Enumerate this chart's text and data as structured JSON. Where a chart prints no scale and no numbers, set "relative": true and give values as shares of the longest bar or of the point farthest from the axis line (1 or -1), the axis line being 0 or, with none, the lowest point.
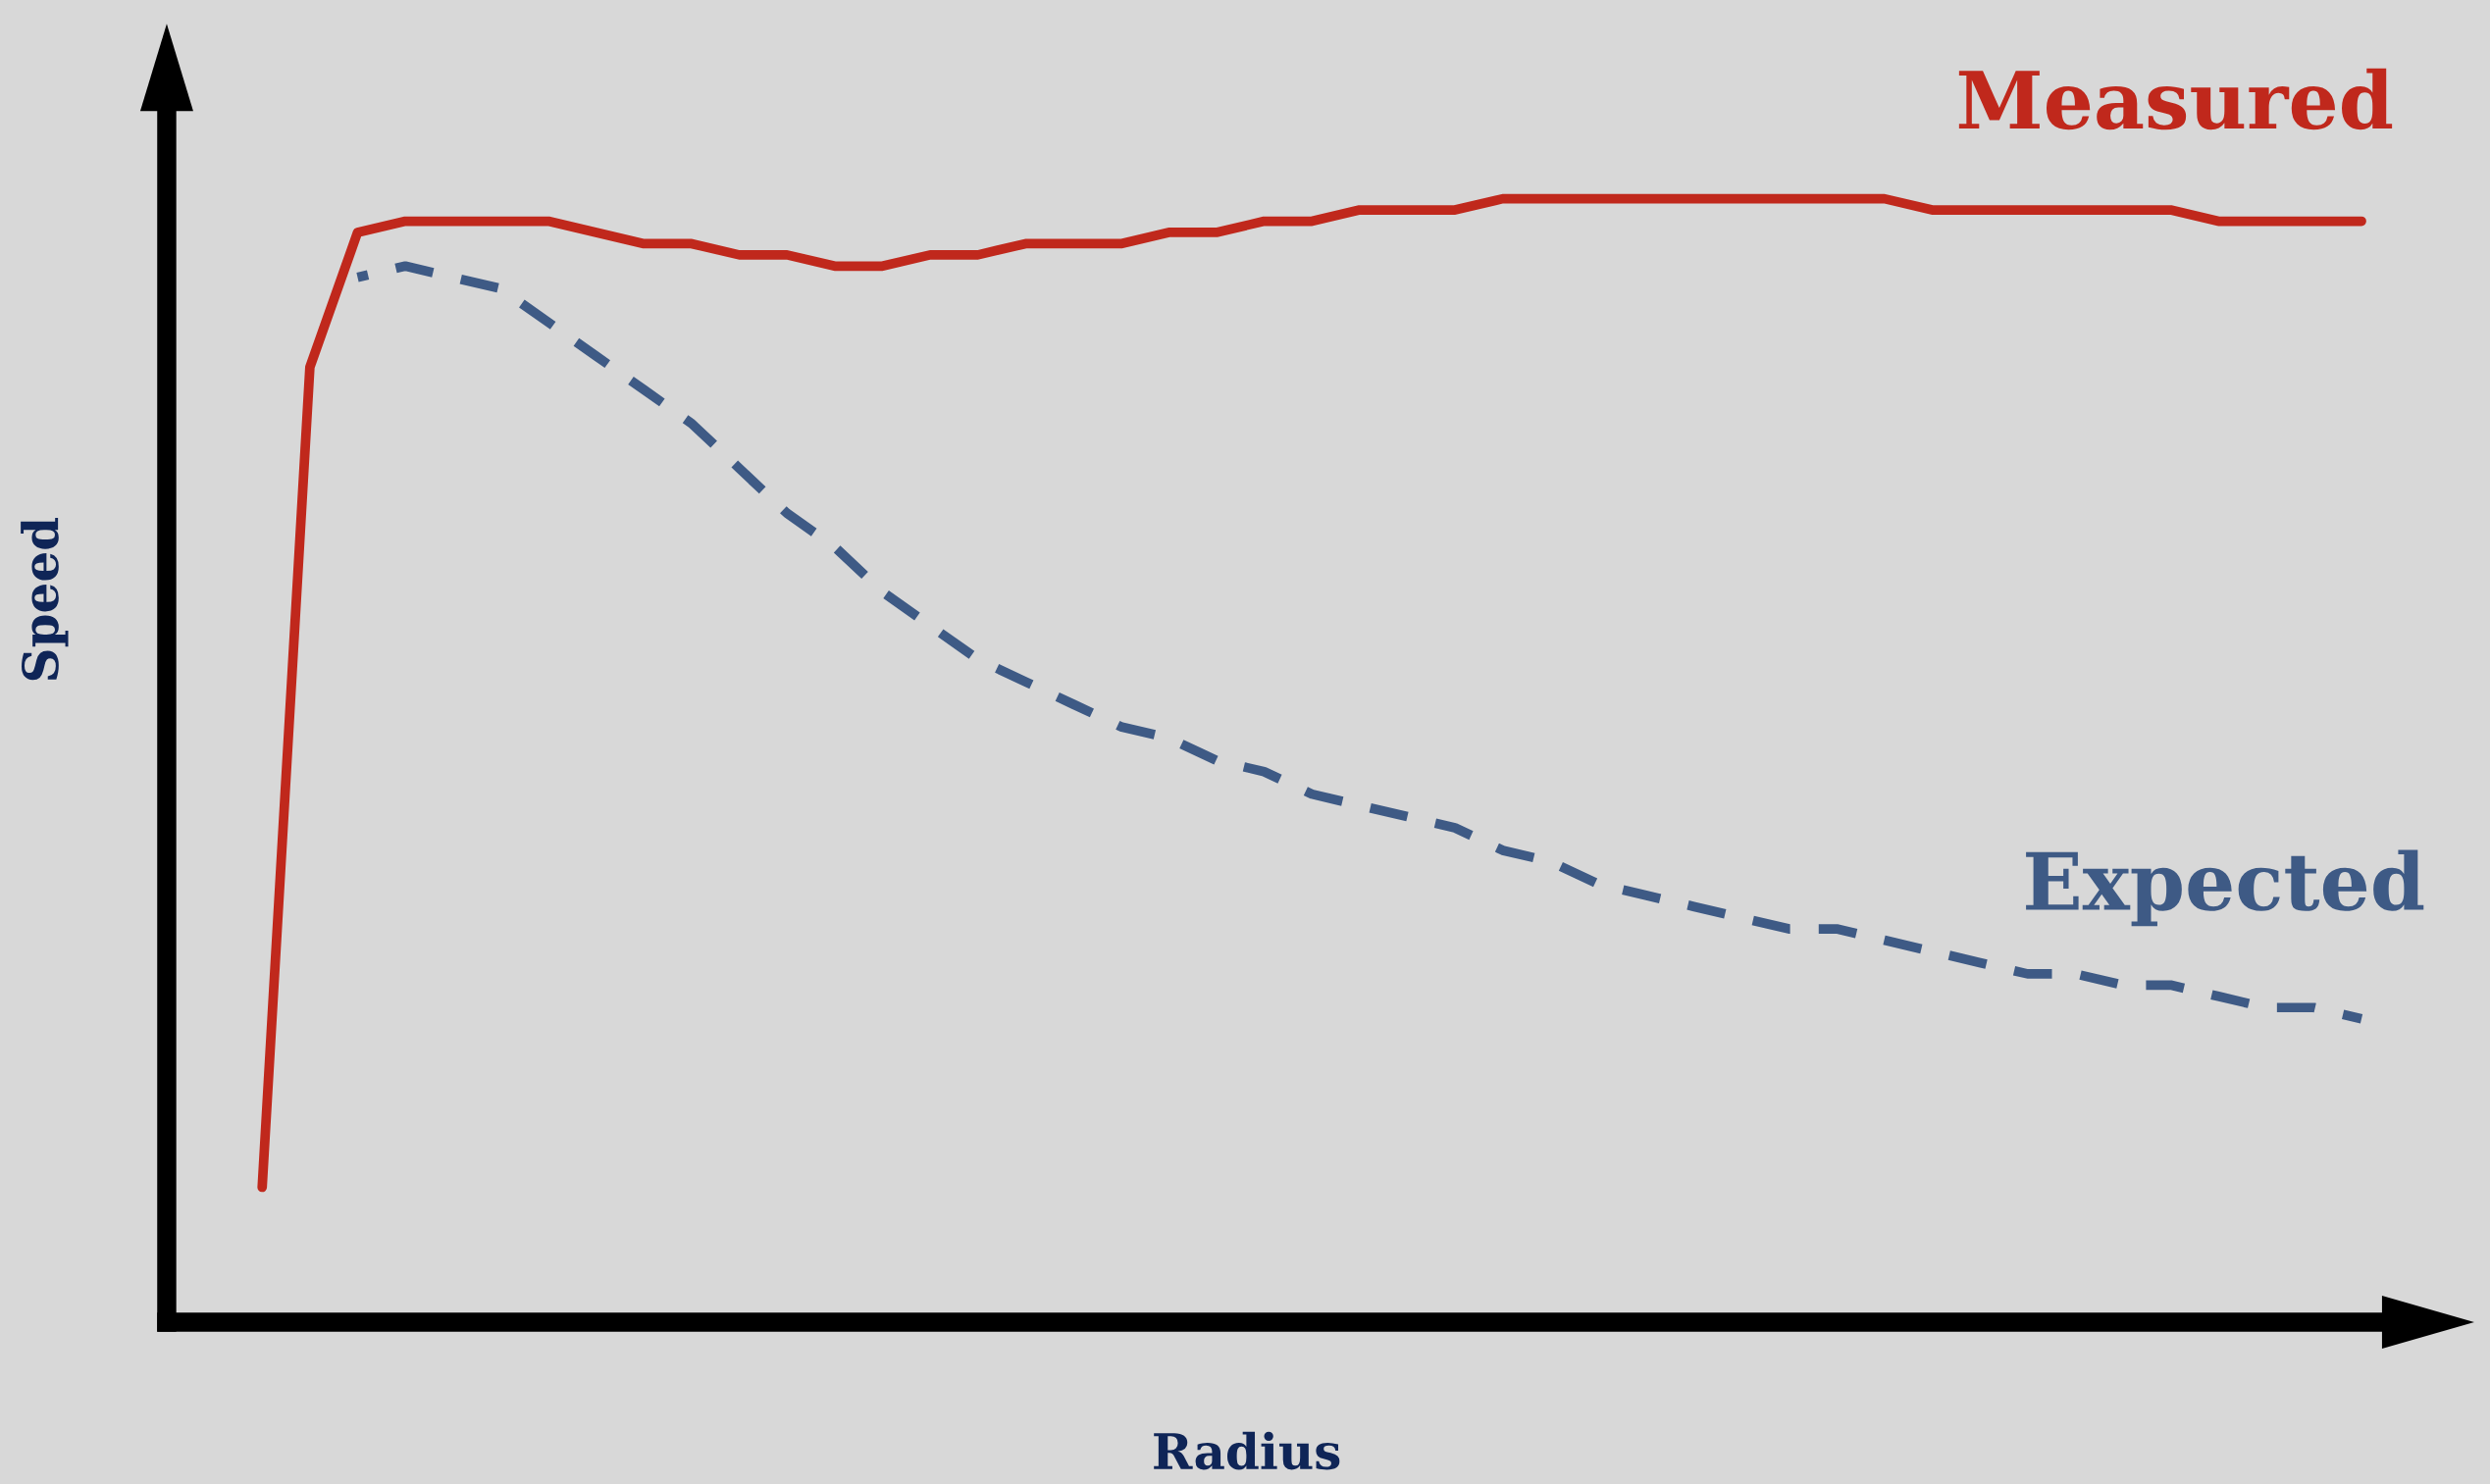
{
  "chart_data": {
    "type": "line",
    "relative": true,
    "xlabel": "Radius",
    "ylabel": "Speed",
    "categories": [
      null,
      null,
      null,
      null,
      null,
      null,
      null,
      null,
      null,
      null,
      null,
      null,
      null,
      null,
      null,
      null,
      null,
      null,
      null,
      null,
      null,
      null,
      null,
      null,
      null,
      null,
      null,
      null,
      null,
      null,
      null,
      null,
      null,
      null,
      null,
      null,
      null,
      null,
      null,
      null,
      null,
      null,
      null,
      null,
      null
    ],
    "series": [
      {
        "name": "Measured",
        "color": "#c0281c",
        "line_style": "solid",
        "values": [
          0.12,
          0.85,
          0.97,
          0.98,
          0.98,
          0.98,
          0.98,
          0.97,
          0.96,
          0.96,
          0.95,
          0.95,
          0.94,
          0.94,
          0.95,
          0.95,
          0.96,
          0.96,
          0.96,
          0.97,
          0.97,
          0.98,
          0.98,
          0.99,
          0.99,
          0.99,
          1.0,
          1.0,
          1.0,
          1.0,
          1.0,
          1.0,
          1.0,
          1.0,
          1.0,
          0.99,
          0.99,
          0.99,
          0.99,
          0.99,
          0.99,
          0.98,
          0.98,
          0.98,
          0.98
        ]
      },
      {
        "name": "Expected",
        "color": "#3e5a85",
        "line_style": "dashed",
        "values": [
          null,
          null,
          0.93,
          0.94,
          0.93,
          0.92,
          0.89,
          0.86,
          0.83,
          0.8,
          0.76,
          0.72,
          0.69,
          0.65,
          0.62,
          0.59,
          0.57,
          0.55,
          0.53,
          0.52,
          0.5,
          0.49,
          0.47,
          0.46,
          0.45,
          0.44,
          0.42,
          0.41,
          0.39,
          0.38,
          0.37,
          0.36,
          0.35,
          0.35,
          0.34,
          0.33,
          0.32,
          0.31,
          0.31,
          0.3,
          0.3,
          0.29,
          0.28,
          0.28,
          0.27
        ]
      }
    ]
  }
}
